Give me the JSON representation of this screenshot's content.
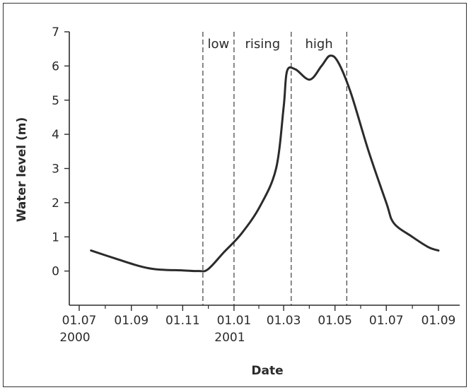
{
  "chart_data": {
    "type": "line",
    "xlabel": "Date",
    "ylabel": "Water level (m)",
    "x_ticks": [
      {
        "label": "01.07",
        "sub": "2000",
        "date": "2000-07-01"
      },
      {
        "label": "01.09",
        "sub": "",
        "date": "2000-09-01"
      },
      {
        "label": "01.11",
        "sub": "",
        "date": "2000-11-01"
      },
      {
        "label": "01.01",
        "sub": "2001",
        "date": "2001-01-01"
      },
      {
        "label": "01.03",
        "sub": "",
        "date": "2001-03-01"
      },
      {
        "label": "01.05",
        "sub": "",
        "date": "2001-05-01"
      },
      {
        "label": "01.07",
        "sub": "",
        "date": "2001-07-01"
      },
      {
        "label": "01.09",
        "sub": "",
        "date": "2001-09-01"
      }
    ],
    "y_ticks": [
      "0",
      "1",
      "2",
      "3",
      "4",
      "5",
      "6",
      "7"
    ],
    "ylim": [
      -1,
      7
    ],
    "xlim": [
      "2000-07-01",
      "2001-09-01"
    ],
    "grid": false,
    "series": [
      {
        "points": [
          {
            "x": "2000-07-15",
            "y": 0.6
          },
          {
            "x": "2000-08-15",
            "y": 0.35
          },
          {
            "x": "2000-09-10",
            "y": 0.15
          },
          {
            "x": "2000-10-01",
            "y": 0.05
          },
          {
            "x": "2000-11-01",
            "y": 0.02
          },
          {
            "x": "2000-11-20",
            "y": 0.0
          },
          {
            "x": "2000-12-01",
            "y": 0.05
          },
          {
            "x": "2000-12-20",
            "y": 0.55
          },
          {
            "x": "2001-01-10",
            "y": 1.1
          },
          {
            "x": "2001-02-01",
            "y": 1.9
          },
          {
            "x": "2001-02-20",
            "y": 3.0
          },
          {
            "x": "2001-03-01",
            "y": 4.8
          },
          {
            "x": "2001-03-05",
            "y": 5.85
          },
          {
            "x": "2001-03-15",
            "y": 5.9
          },
          {
            "x": "2001-04-01",
            "y": 5.6
          },
          {
            "x": "2001-04-15",
            "y": 6.0
          },
          {
            "x": "2001-04-25",
            "y": 6.3
          },
          {
            "x": "2001-05-05",
            "y": 6.1
          },
          {
            "x": "2001-05-20",
            "y": 5.2
          },
          {
            "x": "2001-06-10",
            "y": 3.5
          },
          {
            "x": "2001-07-01",
            "y": 2.0
          },
          {
            "x": "2001-07-10",
            "y": 1.4
          },
          {
            "x": "2001-08-01",
            "y": 1.0
          },
          {
            "x": "2001-08-20",
            "y": 0.7
          },
          {
            "x": "2001-09-01",
            "y": 0.6
          }
        ]
      }
    ],
    "periods": [
      {
        "label": "low",
        "start": "2000-11-25",
        "end": "2001-01-01"
      },
      {
        "label": "rising",
        "start": "2001-01-01",
        "end": "2001-03-10"
      },
      {
        "label": "high",
        "start": "2001-03-10",
        "end": "2001-05-15"
      }
    ],
    "colors": {
      "line": "#2b2b2b",
      "axis": "#2b2b2b"
    }
  }
}
